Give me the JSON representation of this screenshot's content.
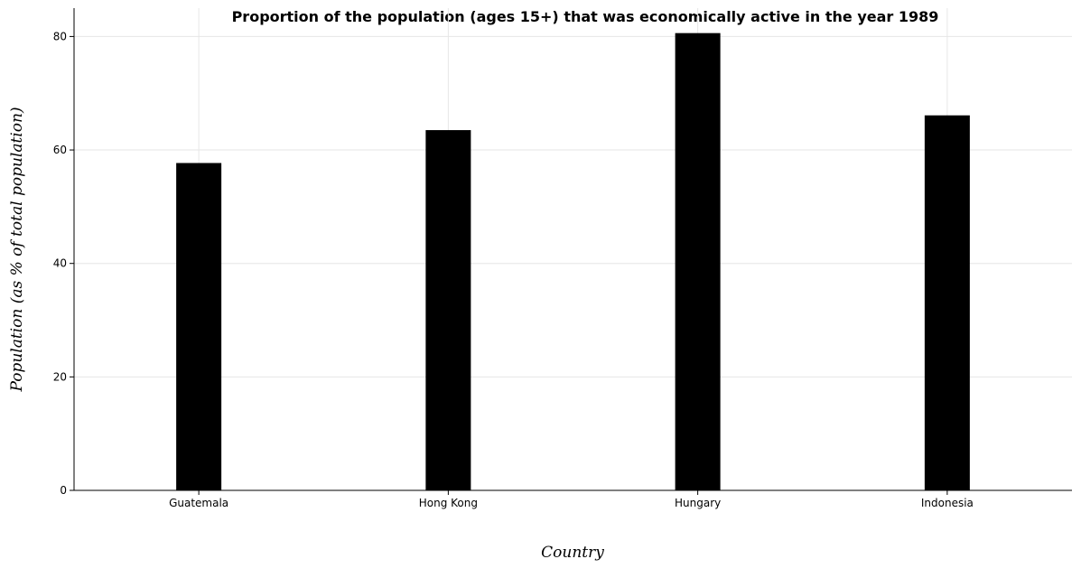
{
  "chart_data": {
    "type": "bar",
    "title": "Proportion of the population (ages 15+) that was economically active in the year 1989",
    "xlabel": "Country",
    "ylabel": "Population (as % of total population)",
    "categories": [
      "Guatemala",
      "Hong Kong",
      "Hungary",
      "Indonesia"
    ],
    "values": [
      57.7,
      63.5,
      80.6,
      66.1
    ],
    "ylim": [
      0,
      85
    ],
    "yticks": [
      0,
      20,
      40,
      60,
      80
    ],
    "grid": true,
    "bar_color": "#000000"
  }
}
